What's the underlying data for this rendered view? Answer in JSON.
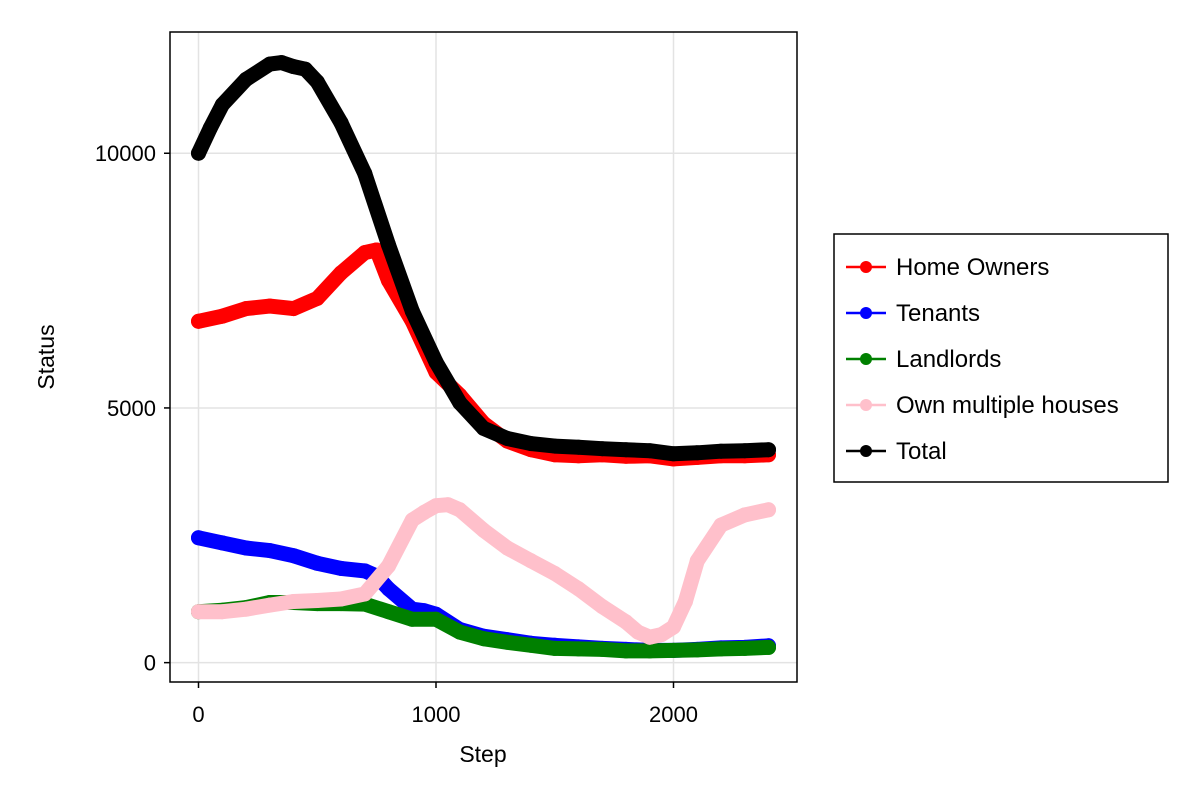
{
  "chart_data": {
    "type": "line",
    "title": "",
    "xlabel": "Step",
    "ylabel": "Status",
    "xlim": [
      -120,
      2520
    ],
    "ylim": [
      -380,
      12380
    ],
    "xticks": [
      0,
      1000,
      2000
    ],
    "yticks": [
      0,
      5000,
      10000
    ],
    "grid": true,
    "legend_position": "right",
    "series": [
      {
        "name": "Home Owners",
        "color": "#ff0000",
        "x": [
          0,
          100,
          200,
          300,
          400,
          500,
          600,
          700,
          750,
          800,
          900,
          1000,
          1100,
          1200,
          1300,
          1400,
          1500,
          1600,
          1700,
          1800,
          1900,
          2000,
          2100,
          2200,
          2300,
          2400
        ],
        "y": [
          6700,
          6800,
          6950,
          7000,
          6950,
          7150,
          7650,
          8050,
          8100,
          7500,
          6700,
          5700,
          5250,
          4700,
          4350,
          4180,
          4080,
          4060,
          4080,
          4050,
          4060,
          4000,
          4030,
          4060,
          4060,
          4080
        ]
      },
      {
        "name": "Tenants",
        "color": "#0000ff",
        "x": [
          0,
          100,
          200,
          300,
          400,
          500,
          600,
          700,
          750,
          800,
          900,
          950,
          1000,
          1100,
          1200,
          1300,
          1400,
          1500,
          1600,
          1700,
          1800,
          1900,
          2000,
          2100,
          2200,
          2300,
          2400
        ],
        "y": [
          2450,
          2350,
          2250,
          2200,
          2100,
          1950,
          1850,
          1800,
          1700,
          1450,
          1050,
          1020,
          950,
          650,
          520,
          450,
          380,
          340,
          310,
          280,
          260,
          240,
          240,
          260,
          290,
          300,
          330
        ]
      },
      {
        "name": "Landlords",
        "color": "#008000",
        "x": [
          0,
          100,
          200,
          300,
          400,
          500,
          600,
          700,
          800,
          900,
          1000,
          1100,
          1200,
          1300,
          1400,
          1500,
          1600,
          1700,
          1800,
          1900,
          2000,
          2100,
          2200,
          2300,
          2400
        ],
        "y": [
          1000,
          1030,
          1080,
          1180,
          1180,
          1160,
          1160,
          1150,
          1000,
          850,
          850,
          600,
          470,
          400,
          340,
          280,
          270,
          260,
          230,
          230,
          240,
          250,
          270,
          280,
          300
        ]
      },
      {
        "name": "Own multiple houses",
        "color": "#ffc0cb",
        "x": [
          0,
          100,
          200,
          300,
          400,
          500,
          600,
          700,
          800,
          900,
          950,
          1000,
          1050,
          1100,
          1200,
          1300,
          1400,
          1500,
          1600,
          1700,
          1800,
          1850,
          1900,
          1950,
          2000,
          2050,
          2100,
          2200,
          2300,
          2400
        ],
        "y": [
          1000,
          1000,
          1050,
          1130,
          1200,
          1220,
          1250,
          1350,
          1900,
          2800,
          2950,
          3080,
          3100,
          3000,
          2600,
          2250,
          2000,
          1750,
          1450,
          1100,
          800,
          600,
          500,
          550,
          700,
          1200,
          2000,
          2700,
          2900,
          3000
        ]
      },
      {
        "name": "Total",
        "color": "#000000",
        "x": [
          0,
          50,
          100,
          200,
          300,
          350,
          400,
          450,
          500,
          600,
          700,
          800,
          900,
          1000,
          1100,
          1200,
          1300,
          1400,
          1500,
          1600,
          1700,
          1800,
          1900,
          2000,
          2100,
          2200,
          2300,
          2400
        ],
        "y": [
          10000,
          10500,
          10950,
          11450,
          11750,
          11780,
          11700,
          11650,
          11400,
          10600,
          9600,
          8200,
          6900,
          5900,
          5100,
          4600,
          4400,
          4300,
          4250,
          4230,
          4200,
          4180,
          4160,
          4100,
          4120,
          4150,
          4160,
          4180
        ]
      }
    ]
  }
}
